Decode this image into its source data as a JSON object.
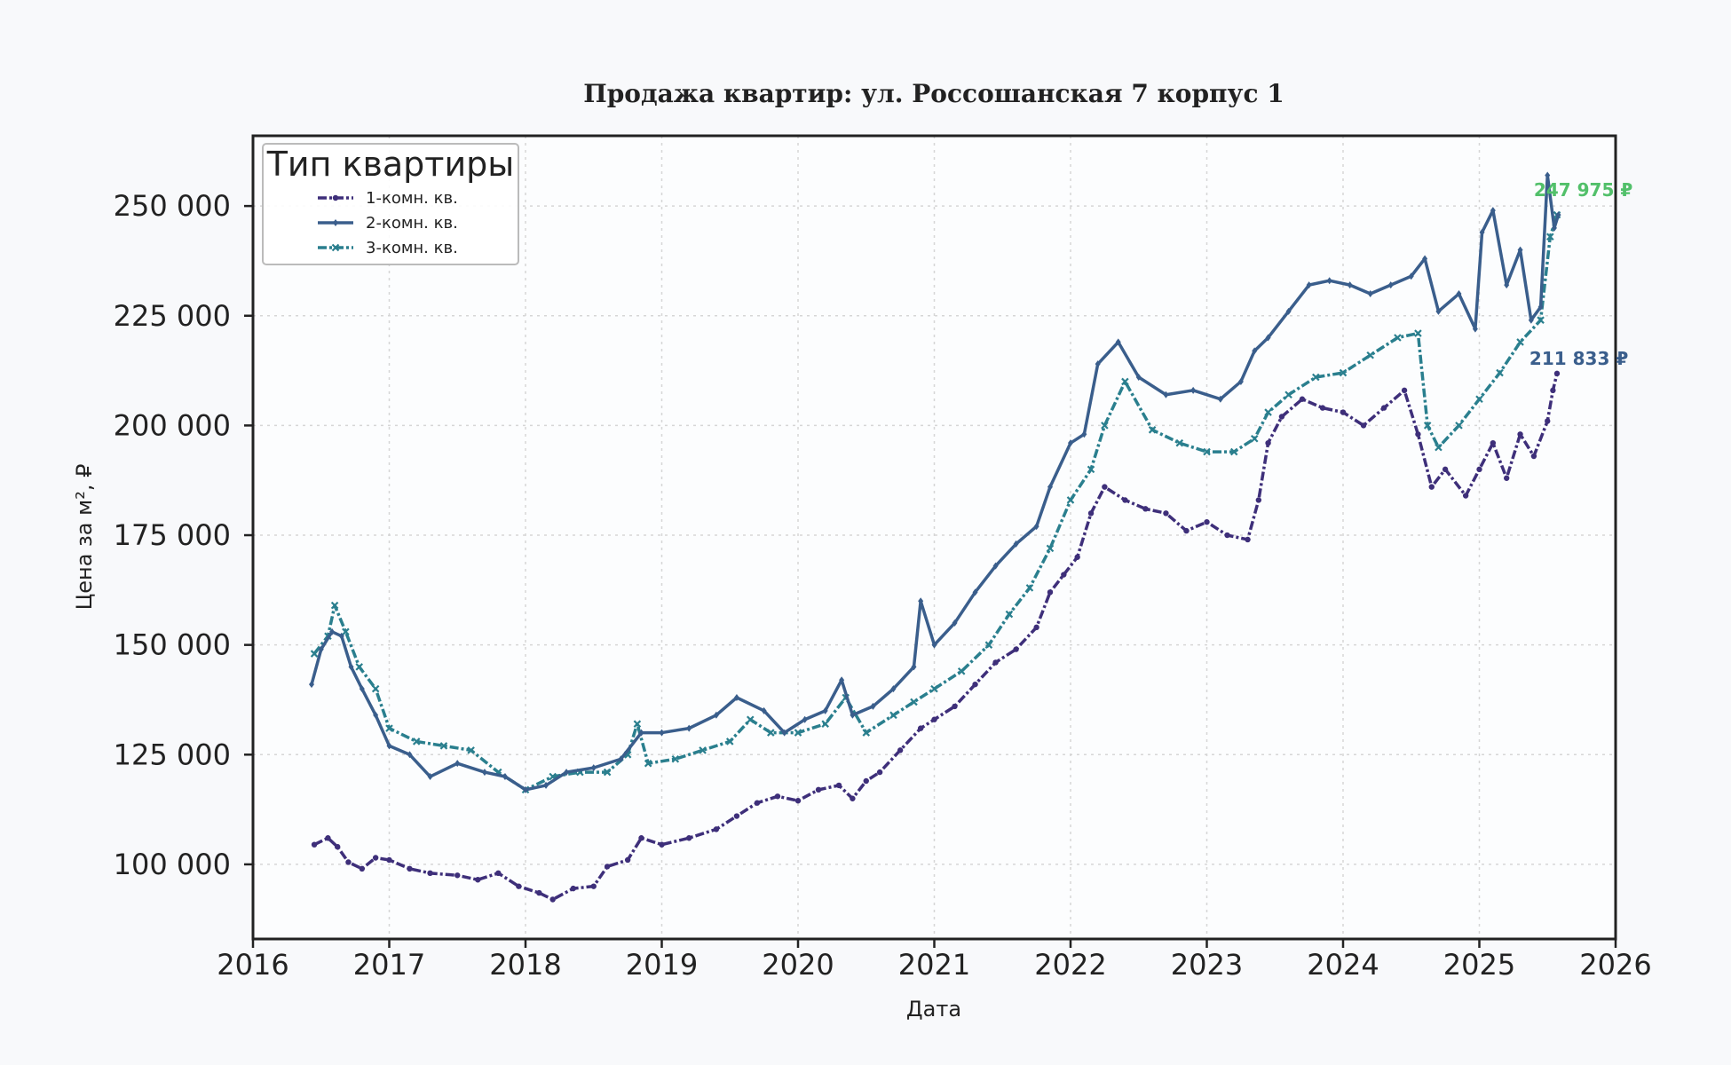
{
  "chart_data": {
    "type": "line",
    "title": "Продажа квартир: ул. Россошанская 7 корпус 1",
    "xlabel": "Дата",
    "ylabel": "Цена за м², ₽",
    "xlim": [
      2016,
      2026
    ],
    "ylim": [
      83000,
      266000
    ],
    "x_ticks": [
      "2016",
      "2017",
      "2018",
      "2019",
      "2020",
      "2021",
      "2022",
      "2023",
      "2024",
      "2025",
      "2026"
    ],
    "y_ticks": [
      {
        "value": 100000,
        "label": "100 000"
      },
      {
        "value": 125000,
        "label": "125 000"
      },
      {
        "value": 150000,
        "label": "150 000"
      },
      {
        "value": 175000,
        "label": "175 000"
      },
      {
        "value": 200000,
        "label": "200 000"
      },
      {
        "value": 225000,
        "label": "225 000"
      },
      {
        "value": 250000,
        "label": "250 000"
      }
    ],
    "grid": true,
    "legend": {
      "title": "Тип квартиры",
      "position": "top-left"
    },
    "series": [
      {
        "name": "1-комн. кв.",
        "color": "#3e2f7a",
        "marker": "circle",
        "x": [
          2016.45,
          2016.55,
          2016.62,
          2016.7,
          2016.8,
          2016.9,
          2017.0,
          2017.15,
          2017.3,
          2017.5,
          2017.65,
          2017.8,
          2017.95,
          2018.1,
          2018.2,
          2018.35,
          2018.5,
          2018.6,
          2018.75,
          2018.85,
          2019.0,
          2019.2,
          2019.4,
          2019.55,
          2019.7,
          2019.85,
          2020.0,
          2020.15,
          2020.3,
          2020.4,
          2020.5,
          2020.6,
          2020.75,
          2020.9,
          2021.0,
          2021.15,
          2021.3,
          2021.45,
          2021.6,
          2021.75,
          2021.85,
          2021.95,
          2022.05,
          2022.15,
          2022.25,
          2022.4,
          2022.55,
          2022.7,
          2022.85,
          2023.0,
          2023.15,
          2023.3,
          2023.38,
          2023.45,
          2023.55,
          2023.7,
          2023.85,
          2024.0,
          2024.15,
          2024.3,
          2024.45,
          2024.55,
          2024.65,
          2024.75,
          2024.9,
          2025.0,
          2025.1,
          2025.2,
          2025.3,
          2025.4,
          2025.5,
          2025.54,
          2025.57
        ],
        "y": [
          104500,
          106000,
          104000,
          100500,
          99000,
          101500,
          101000,
          99000,
          98000,
          97500,
          96500,
          98000,
          95000,
          93500,
          92000,
          94500,
          95000,
          99500,
          101000,
          106000,
          104500,
          106000,
          108000,
          111000,
          114000,
          115500,
          114500,
          117000,
          118000,
          115000,
          119000,
          121000,
          126000,
          131000,
          133000,
          136000,
          141000,
          146000,
          149000,
          154000,
          162000,
          166000,
          170000,
          180000,
          186000,
          183000,
          181000,
          180000,
          176000,
          178000,
          175000,
          174000,
          183000,
          196000,
          202000,
          206000,
          204000,
          203000,
          200000,
          204000,
          208000,
          198000,
          186000,
          190000,
          184000,
          190000,
          196000,
          188000,
          198000,
          193000,
          201000,
          208000,
          211833
        ]
      },
      {
        "name": "2-комн. кв.",
        "color": "#3a5e8c",
        "marker": "diamond",
        "x": [
          2016.43,
          2016.5,
          2016.58,
          2016.65,
          2016.72,
          2016.8,
          2016.9,
          2017.0,
          2017.15,
          2017.3,
          2017.5,
          2017.7,
          2017.85,
          2018.0,
          2018.15,
          2018.3,
          2018.5,
          2018.7,
          2018.85,
          2019.0,
          2019.2,
          2019.4,
          2019.55,
          2019.75,
          2019.9,
          2020.05,
          2020.2,
          2020.32,
          2020.4,
          2020.55,
          2020.7,
          2020.85,
          2020.9,
          2021.0,
          2021.15,
          2021.3,
          2021.45,
          2021.6,
          2021.75,
          2021.85,
          2022.0,
          2022.1,
          2022.2,
          2022.35,
          2022.5,
          2022.7,
          2022.9,
          2023.1,
          2023.25,
          2023.35,
          2023.45,
          2023.6,
          2023.75,
          2023.9,
          2024.05,
          2024.2,
          2024.35,
          2024.5,
          2024.6,
          2024.7,
          2024.85,
          2024.97,
          2025.02,
          2025.1,
          2025.2,
          2025.3,
          2025.38,
          2025.45,
          2025.5,
          2025.55,
          2025.58
        ],
        "y": [
          141000,
          149000,
          153000,
          152000,
          145000,
          140000,
          134000,
          127000,
          125000,
          120000,
          123000,
          121000,
          120000,
          117000,
          118000,
          121000,
          122000,
          124000,
          130000,
          130000,
          131000,
          134000,
          138000,
          135000,
          130000,
          133000,
          135000,
          142000,
          134000,
          136000,
          140000,
          145000,
          160000,
          150000,
          155000,
          162000,
          168000,
          173000,
          177000,
          186000,
          196000,
          198000,
          214000,
          219000,
          211000,
          207000,
          208000,
          206000,
          210000,
          217000,
          220000,
          226000,
          232000,
          233000,
          232000,
          230000,
          232000,
          234000,
          238000,
          226000,
          230000,
          222000,
          244000,
          249000,
          232000,
          240000,
          224000,
          227000,
          257000,
          245000,
          247975
        ]
      },
      {
        "name": "3-комн. кв.",
        "color": "#2a7f8e",
        "marker": "x",
        "x": [
          2016.45,
          2016.55,
          2016.6,
          2016.68,
          2016.78,
          2016.9,
          2017.0,
          2017.2,
          2017.4,
          2017.6,
          2017.8,
          2018.0,
          2018.2,
          2018.4,
          2018.6,
          2018.75,
          2018.82,
          2018.9,
          2019.1,
          2019.3,
          2019.5,
          2019.65,
          2019.8,
          2020.0,
          2020.2,
          2020.35,
          2020.5,
          2020.7,
          2020.85,
          2021.0,
          2021.2,
          2021.4,
          2021.55,
          2021.7,
          2021.85,
          2022.0,
          2022.15,
          2022.25,
          2022.4,
          2022.6,
          2022.8,
          2023.0,
          2023.2,
          2023.35,
          2023.45,
          2023.6,
          2023.8,
          2024.0,
          2024.2,
          2024.4,
          2024.55,
          2024.62,
          2024.7,
          2024.85,
          2025.0,
          2025.15,
          2025.3,
          2025.45,
          2025.52,
          2025.57
        ],
        "y": [
          148000,
          152000,
          159000,
          153000,
          145000,
          140000,
          131000,
          128000,
          127000,
          126000,
          121000,
          117000,
          120000,
          121000,
          121000,
          125000,
          132000,
          123000,
          124000,
          126000,
          128000,
          133000,
          130000,
          130000,
          132000,
          138000,
          130000,
          134000,
          137000,
          140000,
          144000,
          150000,
          157000,
          163000,
          172000,
          183000,
          190000,
          200000,
          210000,
          199000,
          196000,
          194000,
          194000,
          197000,
          203000,
          207000,
          211000,
          212000,
          216000,
          220000,
          221000,
          200000,
          195000,
          200000,
          206000,
          212000,
          219000,
          224000,
          243000,
          247975
        ]
      }
    ],
    "end_labels": [
      {
        "text": "247 975 ₽",
        "color": "#52c06a"
      },
      {
        "text": "211 833 ₽",
        "color": "#3a5e8c"
      }
    ]
  }
}
